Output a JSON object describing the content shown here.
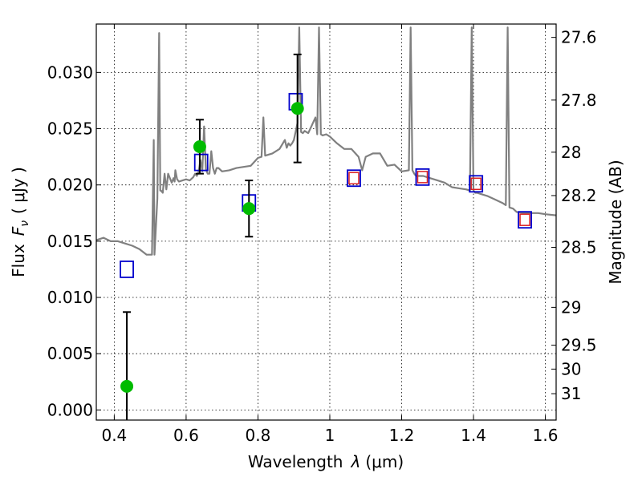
{
  "chart_data": {
    "type": "scatter",
    "xlabel": "Wavelength",
    "xlabel_math": "λ",
    "xlabel_unit": "(μm)",
    "ylabel": "Flux",
    "ylabel_math": "F",
    "ylabel_math_sub": "ν",
    "ylabel_unit": "( μJy )",
    "y2label": "Magnitude (AB)",
    "xlim": [
      0.35,
      1.63
    ],
    "ylim": [
      -0.0009,
      0.0343
    ],
    "grid": true,
    "x_ticks": [
      0.4,
      0.6,
      0.8,
      1.0,
      1.2,
      1.4,
      1.6
    ],
    "x_tick_labels": [
      "0.4",
      "0.6",
      "0.8",
      "1",
      "1.2",
      "1.4",
      "1.6"
    ],
    "y_ticks": [
      0.0,
      0.005,
      0.01,
      0.015,
      0.02,
      0.025,
      0.03
    ],
    "y_tick_labels": [
      "0.000",
      "0.005",
      "0.010",
      "0.015",
      "0.020",
      "0.025",
      "0.030"
    ],
    "y2_tick_labels": [
      "27.6",
      "27.8",
      "28",
      "28.2",
      "28.5",
      "29",
      "29.5",
      "30",
      "31"
    ],
    "y2_tick_magnitudes": [
      27.6,
      27.8,
      28.0,
      28.2,
      28.5,
      29.0,
      29.5,
      30.0,
      31.0
    ],
    "colors": {
      "spectrum": "#808080",
      "observed": "#00bb00",
      "model_blue": "#0000cc",
      "model_red": "#dd2222",
      "errorbar": "#000000"
    },
    "series": [
      {
        "role": "spectrum",
        "x": [
          0.35,
          0.37,
          0.39,
          0.41,
          0.43,
          0.45,
          0.47,
          0.49,
          0.505,
          0.51,
          0.512,
          0.52,
          0.525,
          0.528,
          0.53,
          0.535,
          0.54,
          0.545,
          0.55,
          0.56,
          0.565,
          0.568,
          0.57,
          0.575,
          0.58,
          0.59,
          0.6,
          0.61,
          0.62,
          0.625,
          0.63,
          0.635,
          0.64,
          0.645,
          0.65,
          0.655,
          0.66,
          0.665,
          0.67,
          0.675,
          0.68,
          0.685,
          0.69,
          0.7,
          0.72,
          0.74,
          0.76,
          0.78,
          0.8,
          0.81,
          0.815,
          0.82,
          0.84,
          0.86,
          0.875,
          0.88,
          0.885,
          0.89,
          0.895,
          0.9,
          0.91,
          0.915,
          0.92,
          0.925,
          0.93,
          0.94,
          0.95,
          0.96,
          0.965,
          0.97,
          0.975,
          0.98,
          0.99,
          1.0,
          1.02,
          1.04,
          1.06,
          1.08,
          1.09,
          1.1,
          1.12,
          1.14,
          1.16,
          1.18,
          1.2,
          1.22,
          1.225,
          1.23,
          1.235,
          1.24,
          1.26,
          1.28,
          1.3,
          1.32,
          1.34,
          1.36,
          1.38,
          1.39,
          1.395,
          1.4,
          1.405,
          1.41,
          1.42,
          1.44,
          1.46,
          1.48,
          1.49,
          1.495,
          1.5,
          1.51,
          1.52,
          1.54,
          1.56,
          1.58,
          1.6,
          1.63
        ],
        "y": [
          0.0151,
          0.0153,
          0.015,
          0.015,
          0.0148,
          0.0146,
          0.0143,
          0.0138,
          0.0138,
          0.024,
          0.0138,
          0.0188,
          0.0335,
          0.0195,
          0.0195,
          0.0193,
          0.021,
          0.0196,
          0.021,
          0.0202,
          0.0206,
          0.0203,
          0.0213,
          0.0205,
          0.0203,
          0.0204,
          0.0205,
          0.0204,
          0.0207,
          0.021,
          0.0208,
          0.0212,
          0.0222,
          0.0212,
          0.0252,
          0.0214,
          0.021,
          0.021,
          0.023,
          0.0215,
          0.021,
          0.0215,
          0.0215,
          0.0212,
          0.0213,
          0.0215,
          0.0216,
          0.0217,
          0.0224,
          0.0225,
          0.026,
          0.0226,
          0.0228,
          0.0232,
          0.024,
          0.0233,
          0.0237,
          0.0235,
          0.0237,
          0.024,
          0.0255,
          0.034,
          0.0247,
          0.0246,
          0.0248,
          0.0246,
          0.0253,
          0.026,
          0.0245,
          0.034,
          0.0245,
          0.0244,
          0.0245,
          0.0243,
          0.0237,
          0.0232,
          0.0232,
          0.0225,
          0.0213,
          0.0225,
          0.0228,
          0.0228,
          0.0217,
          0.0218,
          0.0212,
          0.0213,
          0.034,
          0.0213,
          0.021,
          0.0208,
          0.0208,
          0.0206,
          0.0204,
          0.0202,
          0.0198,
          0.0197,
          0.0196,
          0.0195,
          0.034,
          0.0195,
          0.0193,
          0.0193,
          0.0192,
          0.019,
          0.0187,
          0.0184,
          0.0182,
          0.034,
          0.018,
          0.0179,
          0.0176,
          0.0175,
          0.0175,
          0.0175,
          0.0174,
          0.0173
        ]
      },
      {
        "role": "observed",
        "x": [
          0.435,
          0.638,
          0.775,
          0.91
        ],
        "y": [
          0.0021,
          0.0234,
          0.0179,
          0.0268
        ],
        "err": [
          0.0066,
          0.0024,
          0.0025,
          0.0048
        ]
      },
      {
        "role": "model_blue",
        "x": [
          0.435,
          0.642,
          0.775,
          0.905,
          1.067,
          1.258,
          1.407,
          1.543
        ],
        "y": [
          0.0125,
          0.022,
          0.0184,
          0.0274,
          0.0206,
          0.0207,
          0.0201,
          0.0169
        ]
      },
      {
        "role": "model_red",
        "x": [
          1.067,
          1.258,
          1.407,
          1.543
        ],
        "y": [
          0.0206,
          0.0207,
          0.0201,
          0.0169
        ]
      }
    ]
  }
}
